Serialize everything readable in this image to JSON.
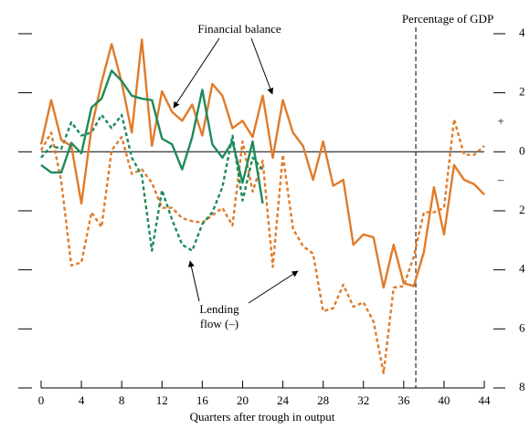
{
  "chart_data": {
    "type": "line",
    "unit_label": "Percentage of GDP",
    "x_label": "Quarters after trough in output",
    "annotations": [
      "Financial balance",
      "Lending",
      "flow (–)"
    ],
    "signs": [
      "+",
      "–"
    ],
    "x": [
      0,
      1,
      2,
      3,
      4,
      5,
      6,
      7,
      8,
      9,
      10,
      11,
      12,
      13,
      14,
      15,
      16,
      17,
      18,
      19,
      20,
      21,
      22,
      23,
      24,
      25,
      26,
      27,
      28,
      29,
      30,
      31,
      32,
      33,
      34,
      35,
      36,
      37,
      38,
      39,
      40,
      41,
      42,
      43,
      44
    ],
    "xlim": [
      0,
      44
    ],
    "xticks": [
      0,
      4,
      8,
      12,
      16,
      20,
      24,
      28,
      32,
      36,
      40,
      44
    ],
    "ylim": [
      -8,
      4.4
    ],
    "yticks": [
      4,
      2,
      0,
      {
        "value": -2,
        "label": "2"
      },
      {
        "value": -4,
        "label": "4"
      },
      {
        "value": -6,
        "label": "6"
      },
      {
        "value": -8,
        "label": "8"
      }
    ],
    "zero_line": true,
    "vline": 37.2,
    "series": [
      {
        "color": "#e07b2a",
        "dashed": true,
        "values": [
          0.05,
          0.65,
          -1.0,
          -3.85,
          -3.75,
          -2.05,
          -2.55,
          0.05,
          0.5,
          -0.75,
          -0.6,
          -1.05,
          -1.9,
          -1.9,
          -2.25,
          -2.35,
          -2.4,
          -2.15,
          -1.9,
          -2.5,
          0.35,
          -1.35,
          -0.3,
          -3.9,
          -0.1,
          -2.6,
          -3.2,
          -3.45,
          -5.4,
          -5.3,
          -4.5,
          -5.25,
          -5.1,
          -5.75,
          -7.5,
          -4.6,
          -4.55,
          -3.55,
          -2.05,
          -2.05,
          -1.9,
          1.1,
          -0.1,
          -0.1,
          0.2
        ]
      },
      {
        "color": "#1e8a5a",
        "dashed": true,
        "values": [
          -0.2,
          0.2,
          0.1,
          1.0,
          0.55,
          0.65,
          1.25,
          0.8,
          1.25,
          -0.2,
          -0.8,
          -3.35,
          -1.3,
          -2.3,
          -3.15,
          -3.35,
          -2.45,
          -2.05,
          -1.2,
          0.55,
          -1.65,
          -0.2,
          -0.6,
          null,
          null,
          null,
          null,
          null,
          null,
          null,
          null,
          null,
          null,
          null,
          null,
          null,
          null,
          null,
          null,
          null,
          null,
          null,
          null,
          null,
          null
        ]
      },
      {
        "color": "#e07b2a",
        "dashed": false,
        "values": [
          0.25,
          1.75,
          0.4,
          0.2,
          -1.75,
          0.8,
          2.35,
          3.65,
          2.35,
          0.65,
          3.8,
          0.2,
          2.05,
          1.35,
          1.05,
          1.6,
          0.55,
          2.3,
          1.9,
          0.8,
          1.05,
          0.5,
          1.9,
          -0.2,
          1.75,
          0.65,
          0.2,
          -0.95,
          0.35,
          -1.15,
          -0.95,
          -3.15,
          -2.8,
          -2.9,
          -4.6,
          -3.15,
          -4.45,
          -4.55,
          -3.4,
          -1.2,
          -2.8,
          -0.45,
          -0.95,
          -1.1,
          -1.45
        ]
      },
      {
        "color": "#1e8a5a",
        "dashed": false,
        "values": [
          -0.45,
          -0.7,
          -0.7,
          0.3,
          -0.05,
          1.5,
          1.8,
          2.75,
          2.4,
          1.9,
          1.8,
          1.75,
          0.45,
          0.25,
          -0.6,
          0.5,
          2.1,
          0.25,
          -0.2,
          0.35,
          -1.05,
          0.35,
          -1.75,
          null,
          null,
          null,
          null,
          null,
          null,
          null,
          null,
          null,
          null,
          null,
          null,
          null,
          null,
          null,
          null,
          null,
          null,
          null,
          null,
          null,
          null
        ]
      }
    ]
  }
}
